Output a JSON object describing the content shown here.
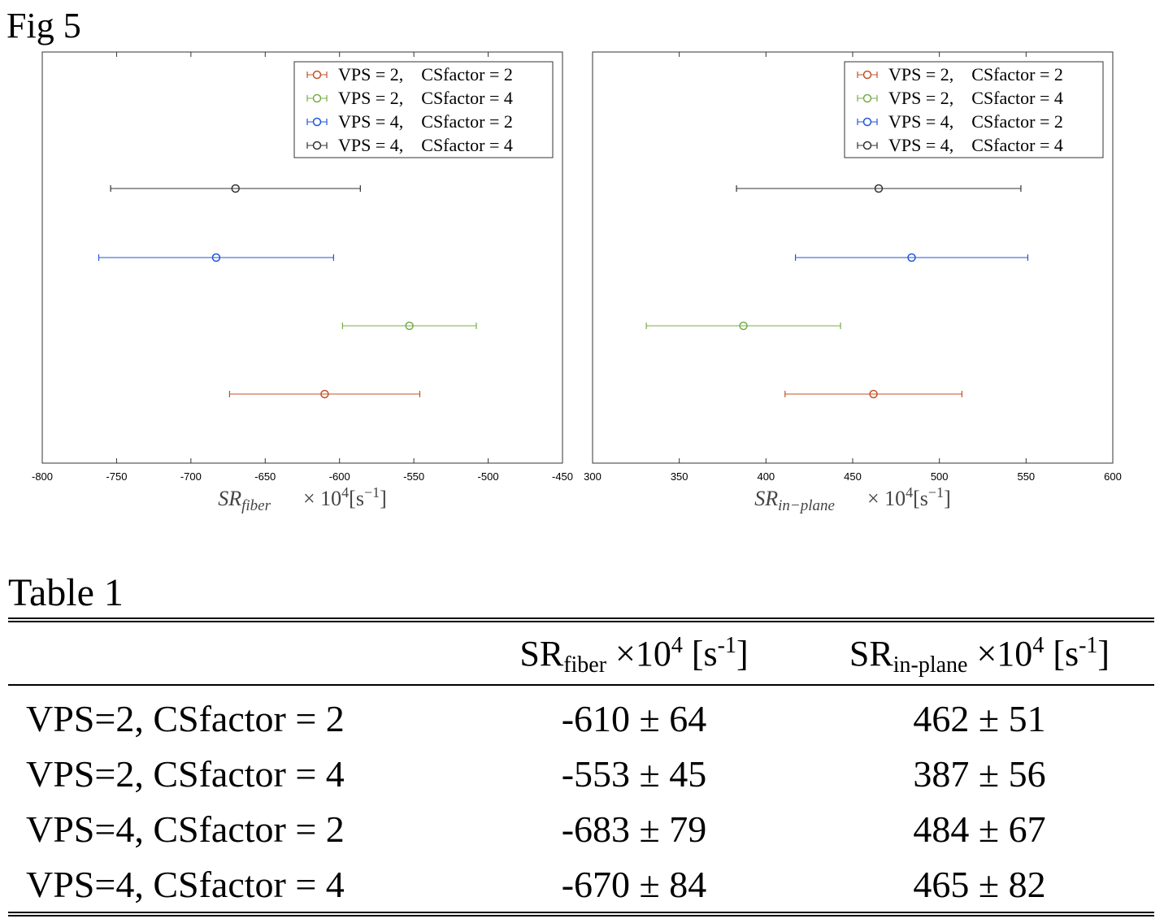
{
  "figure_title": "Fig 5",
  "chart_data": [
    {
      "type": "errorbar",
      "orientation": "horizontal",
      "xlim": [
        -800,
        -450
      ],
      "xticks": [
        -800,
        -750,
        -700,
        -650,
        -600,
        -550,
        -500,
        -450
      ],
      "xtick_labels": [
        "-800",
        "-750",
        "-700",
        "-650",
        "-600",
        "-550",
        "-500",
        "-450"
      ],
      "xlabel_symbol": "SR",
      "xlabel_subscript": "fiber",
      "xlabel_unit": "× 10",
      "xlabel_exp": "4",
      "xlabel_bracket_open": "[s",
      "xlabel_bracket_exp": "−1",
      "xlabel_bracket_close": "]",
      "legend_position": "top-right",
      "series": [
        {
          "name": "VPS = 2,    CSfactor = 2",
          "color": "#c0532a",
          "mean": -610,
          "err": 64
        },
        {
          "name": "VPS = 2,    CSfactor = 4",
          "color": "#77ac48",
          "mean": -553,
          "err": 45
        },
        {
          "name": "VPS = 4,    CSfactor = 2",
          "color": "#2255dd",
          "mean": -683,
          "err": 79
        },
        {
          "name": "VPS = 4,    CSfactor = 4",
          "color": "#333333",
          "mean": -670,
          "err": 84
        }
      ]
    },
    {
      "type": "errorbar",
      "orientation": "horizontal",
      "xlim": [
        300,
        600
      ],
      "xticks": [
        300,
        350,
        400,
        450,
        500,
        550,
        600
      ],
      "xtick_labels": [
        "300",
        "350",
        "400",
        "450",
        "500",
        "550",
        "600"
      ],
      "xlabel_symbol": "SR",
      "xlabel_subscript": "in−plane",
      "xlabel_unit": "× 10",
      "xlabel_exp": "4",
      "xlabel_bracket_open": "[s",
      "xlabel_bracket_exp": "−1",
      "xlabel_bracket_close": "]",
      "legend_position": "top-right",
      "series": [
        {
          "name": "VPS = 2,    CSfactor = 2",
          "color": "#c0532a",
          "mean": 462,
          "err": 51
        },
        {
          "name": "VPS = 2,    CSfactor = 4",
          "color": "#77ac48",
          "mean": 387,
          "err": 56
        },
        {
          "name": "VPS = 4,    CSfactor = 2",
          "color": "#2255dd",
          "mean": 484,
          "err": 67
        },
        {
          "name": "VPS = 4,    CSfactor = 4",
          "color": "#333333",
          "mean": 465,
          "err": 82
        }
      ]
    }
  ],
  "table": {
    "title": "Table 1",
    "header": {
      "fiber_base": "SR",
      "fiber_sub": "fiber",
      "fiber_mult": " ×10",
      "fiber_exp": "4",
      "fiber_unit": " [s",
      "fiber_unit_exp": "-1",
      "fiber_unit_close": "]",
      "inplane_base": "SR",
      "inplane_sub": "in-plane",
      "inplane_mult": " ×10",
      "inplane_exp": "4",
      "inplane_unit": " [s",
      "inplane_unit_exp": "-1",
      "inplane_unit_close": "]"
    },
    "rows": [
      {
        "label": "VPS=2, CSfactor = 2",
        "fiber": "-610 ± 64",
        "inplane": "462 ± 51"
      },
      {
        "label": "VPS=2, CSfactor = 4",
        "fiber": "-553 ± 45",
        "inplane": "387 ± 56"
      },
      {
        "label": "VPS=4, CSfactor = 2",
        "fiber": "-683 ± 79",
        "inplane": "484 ± 67"
      },
      {
        "label": "VPS=4, CSfactor = 4",
        "fiber": "-670 ± 84",
        "inplane": "465 ± 82"
      }
    ]
  }
}
